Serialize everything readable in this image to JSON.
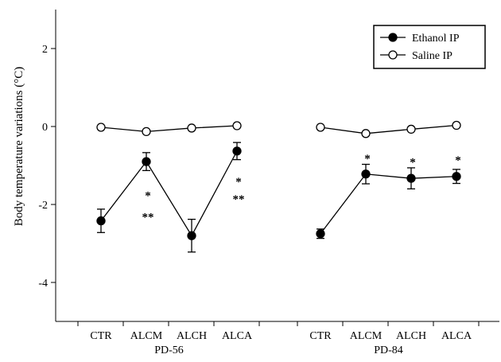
{
  "chart_data": {
    "type": "line",
    "ylabel": "Body temperature variations (°C)",
    "ylim": [
      -5,
      3
    ],
    "yticks": [
      2,
      0,
      -2,
      -4
    ],
    "ytick_labels": [
      "2",
      "0",
      "-2",
      "-4"
    ],
    "grid": false,
    "legend_position": "top-right",
    "groups": [
      {
        "name": "PD-56",
        "categories": [
          "CTR",
          "ALCM",
          "ALCH",
          "ALCA"
        ],
        "series": [
          {
            "name": "Ethanol IP",
            "marker": "filled-circle",
            "values": [
              -2.42,
              -0.9,
              -2.8,
              -0.63
            ],
            "errors": [
              0.3,
              0.23,
              0.42,
              0.22
            ]
          },
          {
            "name": "Saline IP",
            "marker": "open-circle",
            "values": [
              -0.02,
              -0.13,
              -0.04,
              0.02
            ],
            "errors": [
              0,
              0,
              0,
              0
            ]
          }
        ],
        "annotations": [
          {
            "category": "ALCM",
            "text": "*",
            "y": -1.7
          },
          {
            "category": "ALCM",
            "text": "**",
            "y": -2.25
          },
          {
            "category": "ALCA",
            "text": "*",
            "y": -1.35
          },
          {
            "category": "ALCA",
            "text": "**",
            "y": -1.8
          }
        ]
      },
      {
        "name": "PD-84",
        "categories": [
          "CTR",
          "ALCM",
          "ALCH",
          "ALCA"
        ],
        "series": [
          {
            "name": "Ethanol IP",
            "marker": "filled-circle",
            "values": [
              -2.75,
              -1.22,
              -1.33,
              -1.28
            ],
            "errors": [
              0.12,
              0.25,
              0.27,
              0.18
            ]
          },
          {
            "name": "Saline IP",
            "marker": "open-circle",
            "values": [
              -0.02,
              -0.18,
              -0.07,
              0.03
            ],
            "errors": [
              0,
              0,
              0,
              0
            ]
          }
        ],
        "annotations": [
          {
            "category": "ALCM",
            "text": "*",
            "y": -0.75
          },
          {
            "category": "ALCH",
            "text": "*",
            "y": -0.85
          },
          {
            "category": "ALCA",
            "text": "*",
            "y": -0.8
          }
        ]
      }
    ],
    "legend": [
      {
        "label": "Ethanol IP",
        "marker": "filled-circle"
      },
      {
        "label": "Saline IP",
        "marker": "open-circle"
      }
    ]
  }
}
